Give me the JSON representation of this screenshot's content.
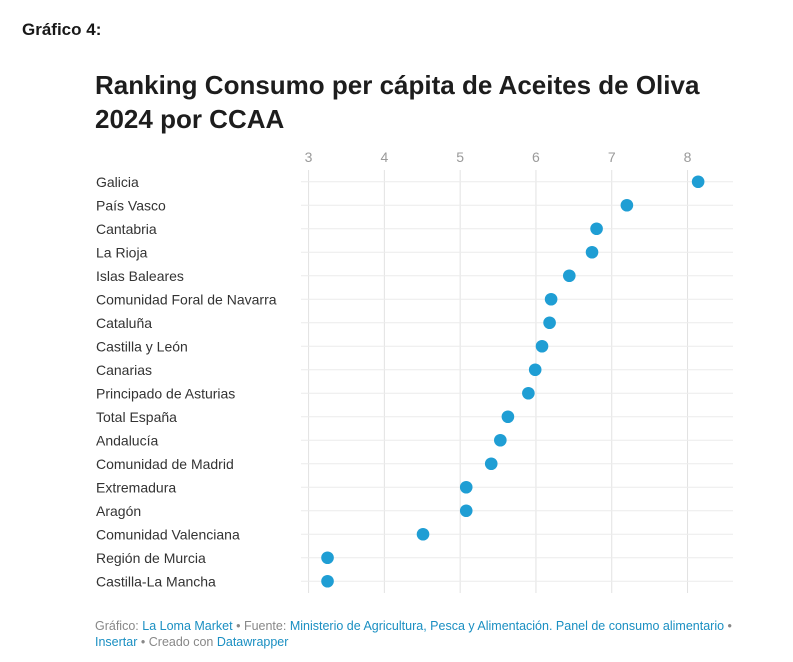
{
  "doc_label": "Gráfico 4:",
  "chart_data": {
    "type": "scatter",
    "title": "Ranking Consumo per cápita de Aceites de Oliva 2024 por CCAA",
    "xlabel": "",
    "ylabel": "",
    "xlim": [
      2.9,
      8.6
    ],
    "xticks": [
      3,
      4,
      5,
      6,
      7,
      8
    ],
    "grid": true,
    "point_color": "#1f9ed4",
    "categories": [
      "Galicia",
      "País Vasco",
      "Cantabria",
      "La Rioja",
      "Islas Baleares",
      "Comunidad Foral de Navarra",
      "Cataluña",
      "Castilla y León",
      "Canarias",
      "Principado de Asturias",
      "Total España",
      "Andalucía",
      "Comunidad de Madrid",
      "Extremadura",
      "Aragón",
      "Comunidad Valenciana",
      "Región de Murcia",
      "Castilla-La Mancha"
    ],
    "values": [
      8.14,
      7.2,
      6.8,
      6.74,
      6.44,
      6.2,
      6.18,
      6.08,
      5.99,
      5.9,
      5.63,
      5.53,
      5.41,
      5.08,
      5.08,
      4.51,
      3.25,
      3.25
    ]
  },
  "footer": {
    "grafico_label": "Gráfico:",
    "grafico_link": "La Loma Market",
    "sep1": "•",
    "fuente_label": "Fuente:",
    "fuente_link": "Ministerio de Agricultura, Pesca y Alimentación. Panel de consumo alimentario",
    "sep2": "•",
    "insertar": "Insertar",
    "sep3": "•",
    "creado_label": "Creado con",
    "creado_link": "Datawrapper"
  }
}
